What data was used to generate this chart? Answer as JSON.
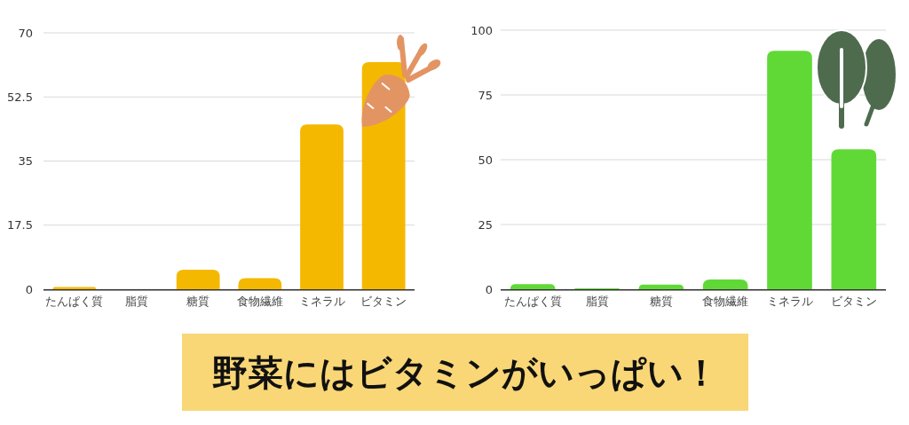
{
  "chart_data": [
    {
      "type": "bar",
      "categories": [
        "たんぱく質",
        "脂質",
        "糖質",
        "食物繊維",
        "ミネラル",
        "ビタミン"
      ],
      "values": [
        0.6,
        0,
        5.3,
        3.0,
        45,
        62
      ],
      "color": "#f5b800",
      "ylim": [
        0,
        70
      ],
      "yticks": [
        0,
        17.5,
        35,
        52.5,
        70
      ],
      "grid": "y"
    },
    {
      "type": "bar",
      "categories": [
        "たんぱく質",
        "脂質",
        "糖質",
        "食物繊維",
        "ミネラル",
        "ビタミン"
      ],
      "values": [
        2,
        0.3,
        1.8,
        3.8,
        92,
        54
      ],
      "color": "#60d937",
      "ylim": [
        0,
        100
      ],
      "yticks": [
        0,
        25,
        50,
        75,
        100
      ],
      "grid": "y"
    },
    {
      "type": "other",
      "title": "野菜にはビタミンがいっぱい！"
    }
  ]
}
